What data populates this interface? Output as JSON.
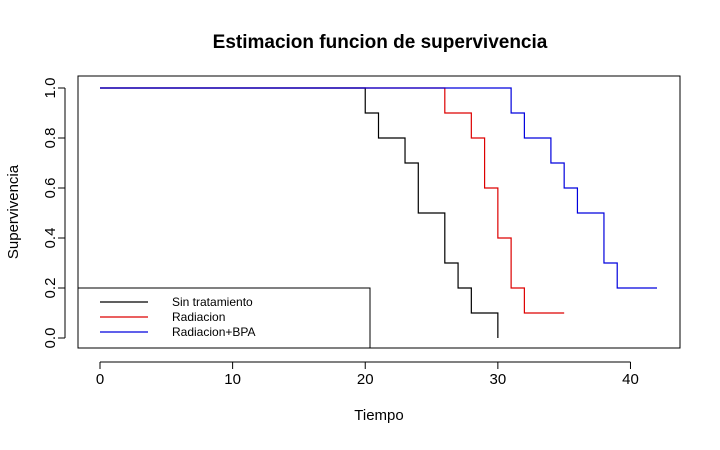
{
  "chart_data": {
    "type": "line",
    "step": true,
    "title": "Estimacion funcion de supervivencia",
    "xlabel": "Tiempo",
    "ylabel": "Supervivencia",
    "xlim": [
      0,
      42
    ],
    "ylim": [
      0,
      1
    ],
    "x_ticks": [
      0,
      10,
      20,
      30,
      40
    ],
    "y_ticks": [
      0.0,
      0.2,
      0.4,
      0.6,
      0.8,
      1.0
    ],
    "x_tick_labels": [
      "0",
      "10",
      "20",
      "30",
      "40"
    ],
    "y_tick_labels": [
      "0.0",
      "0.2",
      "0.4",
      "0.6",
      "0.8",
      "1.0"
    ],
    "grid": false,
    "legend": {
      "position": "bottom-left",
      "boxed": true
    },
    "series": [
      {
        "name": "Sin tratamiento",
        "color": "#000000",
        "x": [
          0,
          20,
          21,
          23,
          24,
          26,
          27,
          28,
          30
        ],
        "y": [
          1.0,
          0.9,
          0.8,
          0.7,
          0.5,
          0.3,
          0.2,
          0.1,
          0.0
        ]
      },
      {
        "name": "Radiacion",
        "color": "#dd0000",
        "x": [
          0,
          26,
          28,
          29,
          30,
          31,
          32,
          35
        ],
        "y": [
          1.0,
          0.9,
          0.8,
          0.6,
          0.4,
          0.2,
          0.1,
          0.1
        ]
      },
      {
        "name": "Radiacion+BPA",
        "color": "#0000dd",
        "x": [
          0,
          31,
          32,
          34,
          35,
          36,
          38,
          39,
          42
        ],
        "y": [
          1.0,
          0.9,
          0.8,
          0.7,
          0.6,
          0.5,
          0.3,
          0.2,
          0.2
        ]
      }
    ]
  }
}
